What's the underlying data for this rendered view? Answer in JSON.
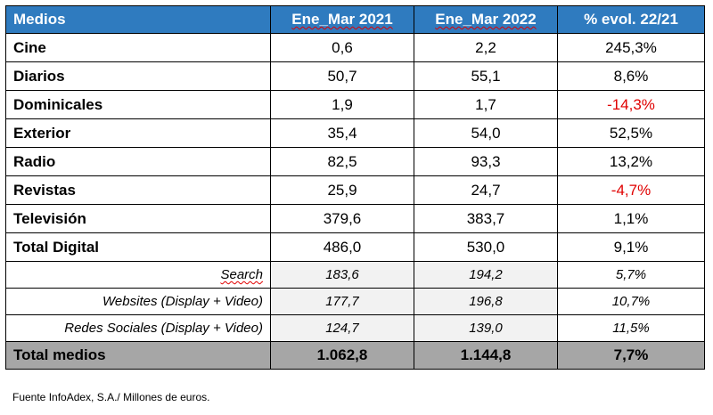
{
  "header": {
    "col0": "Medios",
    "col1": "Ene_Mar 2021",
    "col2": "Ene_Mar 2022",
    "col3": "% evol. 22/21"
  },
  "rows": [
    {
      "label": "Cine",
      "v2021": "0,6",
      "v2022": "2,2",
      "evol": "245,3%"
    },
    {
      "label": "Diarios",
      "v2021": "50,7",
      "v2022": "55,1",
      "evol": "8,6%"
    },
    {
      "label": "Dominicales",
      "v2021": "1,9",
      "v2022": "1,7",
      "evol": "-14,3%"
    },
    {
      "label": "Exterior",
      "v2021": "35,4",
      "v2022": "54,0",
      "evol": "52,5%"
    },
    {
      "label": "Radio",
      "v2021": "82,5",
      "v2022": "93,3",
      "evol": "13,2%"
    },
    {
      "label": "Revistas",
      "v2021": "25,9",
      "v2022": "24,7",
      "evol": "-4,7%"
    },
    {
      "label": "Televisión",
      "v2021": "379,6",
      "v2022": "383,7",
      "evol": "1,1%"
    },
    {
      "label": "Total Digital",
      "v2021": "486,0",
      "v2022": "530,0",
      "evol": "9,1%"
    }
  ],
  "subrows": [
    {
      "label": "Search",
      "v2021": "183,6",
      "v2022": "194,2",
      "evol": "5,7%"
    },
    {
      "label": "Websites (Display + Video)",
      "v2021": "177,7",
      "v2022": "196,8",
      "evol": "10,7%"
    },
    {
      "label": "Redes Sociales (Display + Video)",
      "v2021": "124,7",
      "v2022": "139,0",
      "evol": "11,5%"
    }
  ],
  "total": {
    "label": "Total medios",
    "v2021": "1.062,8",
    "v2022": "1.144,8",
    "evol": "7,7%"
  },
  "footnote": "Fuente InfoAdex, S.A./ Millones de euros.",
  "colors": {
    "header_bg": "#2f7bbf",
    "total_bg": "#a6a6a6",
    "negative": "#e00000"
  }
}
